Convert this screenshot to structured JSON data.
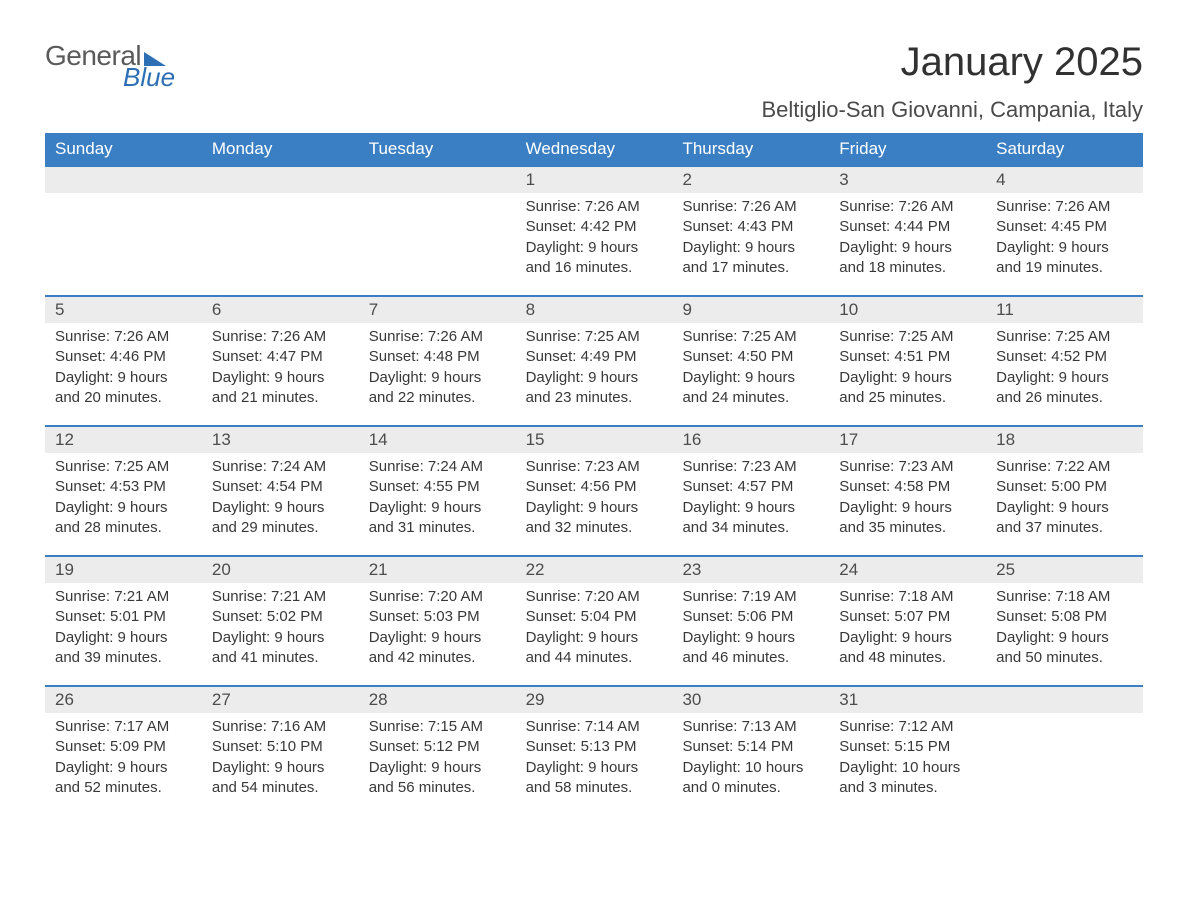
{
  "logo": {
    "general": "General",
    "blue": "Blue"
  },
  "title": "January 2025",
  "location": "Beltiglio-San Giovanni, Campania, Italy",
  "weekdays": [
    "Sunday",
    "Monday",
    "Tuesday",
    "Wednesday",
    "Thursday",
    "Friday",
    "Saturday"
  ],
  "style": {
    "accent_color": "#3a7fc4",
    "daynum_bg": "#ececec",
    "text_color": "#333333",
    "title_fontsize": 40,
    "location_fontsize": 22,
    "weekday_fontsize": 17,
    "daynum_fontsize": 17,
    "body_fontsize": 15,
    "doc_width": 1188,
    "doc_height": 918
  },
  "weeks": [
    [
      {
        "n": "",
        "sunrise": "",
        "sunset": "",
        "daylight1": "",
        "daylight2": ""
      },
      {
        "n": "",
        "sunrise": "",
        "sunset": "",
        "daylight1": "",
        "daylight2": ""
      },
      {
        "n": "",
        "sunrise": "",
        "sunset": "",
        "daylight1": "",
        "daylight2": ""
      },
      {
        "n": "1",
        "sunrise": "Sunrise: 7:26 AM",
        "sunset": "Sunset: 4:42 PM",
        "daylight1": "Daylight: 9 hours",
        "daylight2": "and 16 minutes."
      },
      {
        "n": "2",
        "sunrise": "Sunrise: 7:26 AM",
        "sunset": "Sunset: 4:43 PM",
        "daylight1": "Daylight: 9 hours",
        "daylight2": "and 17 minutes."
      },
      {
        "n": "3",
        "sunrise": "Sunrise: 7:26 AM",
        "sunset": "Sunset: 4:44 PM",
        "daylight1": "Daylight: 9 hours",
        "daylight2": "and 18 minutes."
      },
      {
        "n": "4",
        "sunrise": "Sunrise: 7:26 AM",
        "sunset": "Sunset: 4:45 PM",
        "daylight1": "Daylight: 9 hours",
        "daylight2": "and 19 minutes."
      }
    ],
    [
      {
        "n": "5",
        "sunrise": "Sunrise: 7:26 AM",
        "sunset": "Sunset: 4:46 PM",
        "daylight1": "Daylight: 9 hours",
        "daylight2": "and 20 minutes."
      },
      {
        "n": "6",
        "sunrise": "Sunrise: 7:26 AM",
        "sunset": "Sunset: 4:47 PM",
        "daylight1": "Daylight: 9 hours",
        "daylight2": "and 21 minutes."
      },
      {
        "n": "7",
        "sunrise": "Sunrise: 7:26 AM",
        "sunset": "Sunset: 4:48 PM",
        "daylight1": "Daylight: 9 hours",
        "daylight2": "and 22 minutes."
      },
      {
        "n": "8",
        "sunrise": "Sunrise: 7:25 AM",
        "sunset": "Sunset: 4:49 PM",
        "daylight1": "Daylight: 9 hours",
        "daylight2": "and 23 minutes."
      },
      {
        "n": "9",
        "sunrise": "Sunrise: 7:25 AM",
        "sunset": "Sunset: 4:50 PM",
        "daylight1": "Daylight: 9 hours",
        "daylight2": "and 24 minutes."
      },
      {
        "n": "10",
        "sunrise": "Sunrise: 7:25 AM",
        "sunset": "Sunset: 4:51 PM",
        "daylight1": "Daylight: 9 hours",
        "daylight2": "and 25 minutes."
      },
      {
        "n": "11",
        "sunrise": "Sunrise: 7:25 AM",
        "sunset": "Sunset: 4:52 PM",
        "daylight1": "Daylight: 9 hours",
        "daylight2": "and 26 minutes."
      }
    ],
    [
      {
        "n": "12",
        "sunrise": "Sunrise: 7:25 AM",
        "sunset": "Sunset: 4:53 PM",
        "daylight1": "Daylight: 9 hours",
        "daylight2": "and 28 minutes."
      },
      {
        "n": "13",
        "sunrise": "Sunrise: 7:24 AM",
        "sunset": "Sunset: 4:54 PM",
        "daylight1": "Daylight: 9 hours",
        "daylight2": "and 29 minutes."
      },
      {
        "n": "14",
        "sunrise": "Sunrise: 7:24 AM",
        "sunset": "Sunset: 4:55 PM",
        "daylight1": "Daylight: 9 hours",
        "daylight2": "and 31 minutes."
      },
      {
        "n": "15",
        "sunrise": "Sunrise: 7:23 AM",
        "sunset": "Sunset: 4:56 PM",
        "daylight1": "Daylight: 9 hours",
        "daylight2": "and 32 minutes."
      },
      {
        "n": "16",
        "sunrise": "Sunrise: 7:23 AM",
        "sunset": "Sunset: 4:57 PM",
        "daylight1": "Daylight: 9 hours",
        "daylight2": "and 34 minutes."
      },
      {
        "n": "17",
        "sunrise": "Sunrise: 7:23 AM",
        "sunset": "Sunset: 4:58 PM",
        "daylight1": "Daylight: 9 hours",
        "daylight2": "and 35 minutes."
      },
      {
        "n": "18",
        "sunrise": "Sunrise: 7:22 AM",
        "sunset": "Sunset: 5:00 PM",
        "daylight1": "Daylight: 9 hours",
        "daylight2": "and 37 minutes."
      }
    ],
    [
      {
        "n": "19",
        "sunrise": "Sunrise: 7:21 AM",
        "sunset": "Sunset: 5:01 PM",
        "daylight1": "Daylight: 9 hours",
        "daylight2": "and 39 minutes."
      },
      {
        "n": "20",
        "sunrise": "Sunrise: 7:21 AM",
        "sunset": "Sunset: 5:02 PM",
        "daylight1": "Daylight: 9 hours",
        "daylight2": "and 41 minutes."
      },
      {
        "n": "21",
        "sunrise": "Sunrise: 7:20 AM",
        "sunset": "Sunset: 5:03 PM",
        "daylight1": "Daylight: 9 hours",
        "daylight2": "and 42 minutes."
      },
      {
        "n": "22",
        "sunrise": "Sunrise: 7:20 AM",
        "sunset": "Sunset: 5:04 PM",
        "daylight1": "Daylight: 9 hours",
        "daylight2": "and 44 minutes."
      },
      {
        "n": "23",
        "sunrise": "Sunrise: 7:19 AM",
        "sunset": "Sunset: 5:06 PM",
        "daylight1": "Daylight: 9 hours",
        "daylight2": "and 46 minutes."
      },
      {
        "n": "24",
        "sunrise": "Sunrise: 7:18 AM",
        "sunset": "Sunset: 5:07 PM",
        "daylight1": "Daylight: 9 hours",
        "daylight2": "and 48 minutes."
      },
      {
        "n": "25",
        "sunrise": "Sunrise: 7:18 AM",
        "sunset": "Sunset: 5:08 PM",
        "daylight1": "Daylight: 9 hours",
        "daylight2": "and 50 minutes."
      }
    ],
    [
      {
        "n": "26",
        "sunrise": "Sunrise: 7:17 AM",
        "sunset": "Sunset: 5:09 PM",
        "daylight1": "Daylight: 9 hours",
        "daylight2": "and 52 minutes."
      },
      {
        "n": "27",
        "sunrise": "Sunrise: 7:16 AM",
        "sunset": "Sunset: 5:10 PM",
        "daylight1": "Daylight: 9 hours",
        "daylight2": "and 54 minutes."
      },
      {
        "n": "28",
        "sunrise": "Sunrise: 7:15 AM",
        "sunset": "Sunset: 5:12 PM",
        "daylight1": "Daylight: 9 hours",
        "daylight2": "and 56 minutes."
      },
      {
        "n": "29",
        "sunrise": "Sunrise: 7:14 AM",
        "sunset": "Sunset: 5:13 PM",
        "daylight1": "Daylight: 9 hours",
        "daylight2": "and 58 minutes."
      },
      {
        "n": "30",
        "sunrise": "Sunrise: 7:13 AM",
        "sunset": "Sunset: 5:14 PM",
        "daylight1": "Daylight: 10 hours",
        "daylight2": "and 0 minutes."
      },
      {
        "n": "31",
        "sunrise": "Sunrise: 7:12 AM",
        "sunset": "Sunset: 5:15 PM",
        "daylight1": "Daylight: 10 hours",
        "daylight2": "and 3 minutes."
      },
      {
        "n": "",
        "sunrise": "",
        "sunset": "",
        "daylight1": "",
        "daylight2": ""
      }
    ]
  ]
}
